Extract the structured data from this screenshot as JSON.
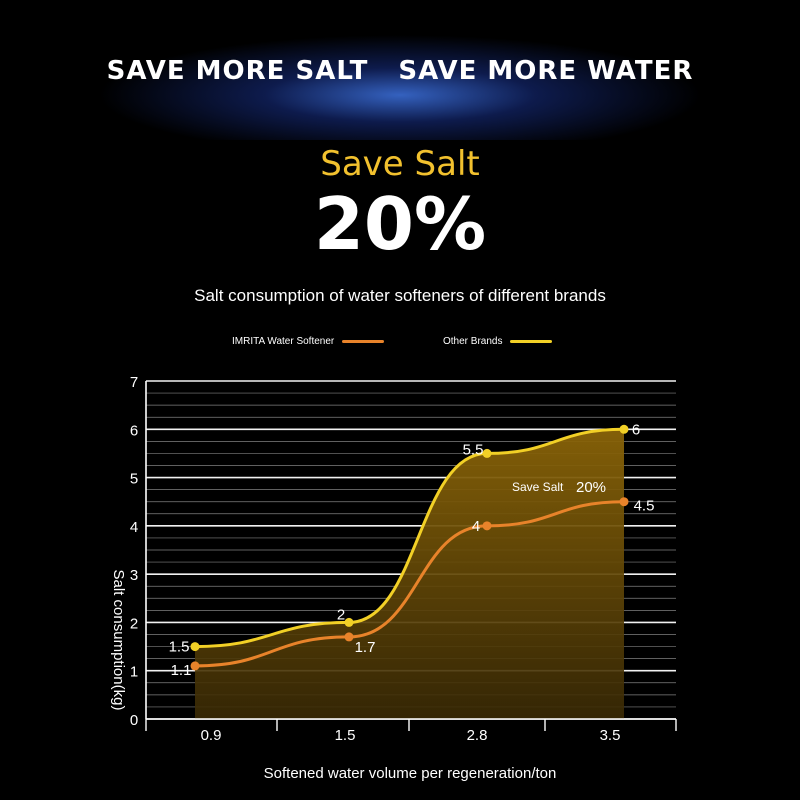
{
  "header": {
    "headline_left": "SAVE MORE SALT",
    "headline_right": "SAVE MORE WATER",
    "save_label": "Save Salt",
    "save_percent": "20%",
    "subtitle": "Salt consumption of water softeners of different brands"
  },
  "colors": {
    "imrita": "#e8832a",
    "other": "#f2d026",
    "fill": "#6b4d06",
    "grid": "#ffffff"
  },
  "chart_data": {
    "type": "line",
    "title": "Salt consumption of water softeners of different brands",
    "xlabel": "Softened water volume per regeneration/ton",
    "ylabel": "Salt consumption(kg)",
    "x": [
      0.9,
      1.5,
      2.8,
      3.5
    ],
    "x_tick_labels": [
      "0.9",
      "1.5",
      "2.8",
      "3.5"
    ],
    "ylim": [
      0,
      7
    ],
    "y_ticks": [
      0,
      1,
      2,
      3,
      4,
      5,
      6,
      7
    ],
    "grid": true,
    "legend_position": "top",
    "series": [
      {
        "name": "IMRITA Water Softener",
        "values": [
          1.1,
          1.7,
          4,
          4.5
        ],
        "labels": [
          "1.1",
          "1.7",
          "4",
          "4.5"
        ],
        "color": "#e8832a"
      },
      {
        "name": "Other Brands",
        "values": [
          1.5,
          2,
          5.5,
          6
        ],
        "labels": [
          "1.5",
          "2",
          "5.5",
          "6"
        ],
        "color": "#f2d026"
      }
    ],
    "annotation": {
      "text": "Save Salt",
      "value": "20%"
    }
  }
}
